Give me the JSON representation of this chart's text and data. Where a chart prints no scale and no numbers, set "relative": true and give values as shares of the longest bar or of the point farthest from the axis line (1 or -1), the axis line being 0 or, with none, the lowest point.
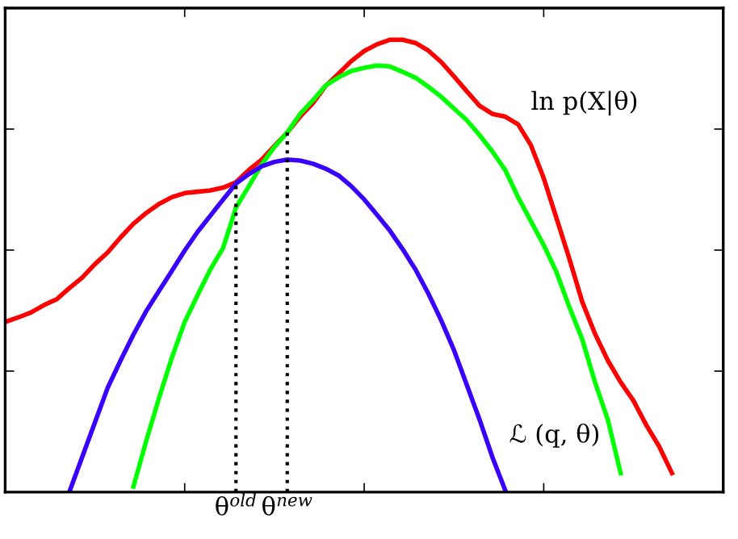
{
  "chart_data": {
    "type": "line",
    "relative": true,
    "legend": false,
    "grid": false,
    "categories": [
      null,
      null,
      null,
      null,
      null,
      null,
      null,
      null,
      null,
      null,
      null,
      null,
      null,
      null,
      null,
      null,
      null,
      null,
      "θ$^{old}$",
      null,
      null,
      null,
      "θ$^{new}$",
      null,
      null,
      null,
      null,
      null,
      null,
      null,
      null,
      null,
      null,
      null,
      null,
      null,
      null,
      null,
      null,
      null,
      null,
      null,
      null,
      null,
      null,
      null,
      null,
      null,
      null,
      null,
      null,
      null,
      null,
      null,
      null,
      null,
      null
    ],
    "series": [
      {
        "name": "ln p(X|θ)",
        "color": "#ff0000",
        "values": [
          0.376,
          0.386,
          0.397,
          0.413,
          0.426,
          0.451,
          0.474,
          0.504,
          0.53,
          0.563,
          0.593,
          0.617,
          0.637,
          0.652,
          0.661,
          0.664,
          0.667,
          0.673,
          0.685,
          0.712,
          0.735,
          0.765,
          0.795,
          0.83,
          0.86,
          0.898,
          0.925,
          0.953,
          0.975,
          0.99,
          1.0,
          1.0,
          0.993,
          0.976,
          0.951,
          0.919,
          0.886,
          0.854,
          0.836,
          0.83,
          0.813,
          0.767,
          0.694,
          0.605,
          0.516,
          0.421,
          0.35,
          0.291,
          0.243,
          0.202,
          0.148,
          0.101,
          0.042,
          null,
          null,
          null,
          null
        ]
      },
      {
        "color": "#00ff00",
        "values": [
          null,
          null,
          null,
          null,
          null,
          null,
          null,
          null,
          null,
          null,
          0.012,
          0.113,
          0.208,
          0.297,
          0.376,
          0.435,
          0.492,
          0.54,
          0.629,
          0.676,
          0.724,
          0.763,
          0.795,
          0.836,
          0.866,
          0.899,
          0.917,
          0.931,
          0.938,
          0.943,
          0.941,
          0.929,
          0.916,
          0.896,
          0.874,
          0.848,
          0.822,
          0.789,
          0.753,
          0.712,
          0.652,
          0.599,
          0.546,
          0.486,
          0.409,
          0.338,
          0.243,
          0.16,
          0.042,
          null,
          null,
          null,
          null,
          null,
          null,
          null,
          null
        ]
      },
      {
        "name": "ℒ (q, θ)",
        "color": "#3a00ff",
        "values": [
          null,
          null,
          null,
          null,
          null,
          0.0,
          0.077,
          0.154,
          0.231,
          0.291,
          0.348,
          0.4,
          0.445,
          0.489,
          0.534,
          0.575,
          0.611,
          0.647,
          0.682,
          0.703,
          0.72,
          0.73,
          0.735,
          0.733,
          0.726,
          0.715,
          0.7,
          0.676,
          0.647,
          0.613,
          0.578,
          0.537,
          0.492,
          0.439,
          0.38,
          0.314,
          0.237,
          0.16,
          0.077,
          0.004,
          null,
          null,
          null,
          null,
          null,
          null,
          null,
          null,
          null,
          null,
          null,
          null,
          null,
          null,
          null,
          null,
          null
        ]
      }
    ],
    "ref_lines": [
      {
        "axis": "x",
        "value": "θ$^{old}$",
        "color": "#000000",
        "line_style": "dotted"
      },
      {
        "axis": "x",
        "value": "θ$^{new}$",
        "color": "#000000",
        "line_style": "dotted"
      }
    ]
  }
}
